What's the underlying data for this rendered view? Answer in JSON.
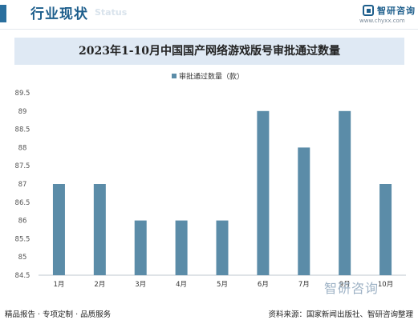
{
  "header": {
    "title": "行业现状",
    "title_en": "Status",
    "logo_name": "智研咨询",
    "logo_url": "www.chyxx.com"
  },
  "chart_data": {
    "type": "bar",
    "title": "2023年1-10月中国国产网络游戏版号审批通过数量",
    "categories": [
      "1月",
      "2月",
      "3月",
      "4月",
      "5月",
      "6月",
      "7月",
      "9月",
      "10月"
    ],
    "series": [
      {
        "name": "审批通过数量（款）",
        "values": [
          87,
          87,
          86,
          86,
          86,
          89,
          88,
          89,
          87
        ]
      }
    ],
    "y_ticks": [
      "84.5",
      "85",
      "85.5",
      "86",
      "86.5",
      "87",
      "87.5",
      "88",
      "88.5",
      "89",
      "89.5"
    ],
    "ylim": [
      84.5,
      89.5
    ],
    "legend_position": "top",
    "grid": false,
    "bar_color": "#5b8ca8"
  },
  "watermark": "智研咨询",
  "footer": {
    "left": "精品报告 · 专项定制 · 品质服务",
    "right": "资料来源：国家新闻出版社、智研咨询整理"
  }
}
